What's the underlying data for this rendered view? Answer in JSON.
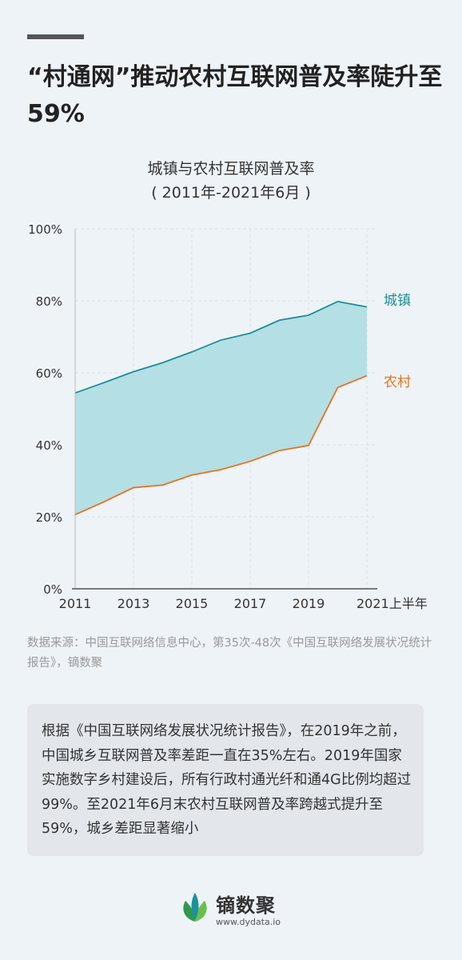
{
  "headline": "“村通网”推动农村互联网普及率陡升至59%",
  "chart_title_line1": "城镇与农村互联网普及率",
  "chart_title_line2": "( 2011年-2021年6月 )",
  "source": "数据来源：中国互联网络信息中心，第35次-48次《中国互联网络发展状况统计报告》，镝数聚",
  "note": "根据《中国互联网络发展状况统计报告》，在2019年之前，中国城乡互联网普及率差距一直在35%左右。2019年国家实施数字乡村建设后，所有行政村通光纤和通4G比例均超过99%。至2021年6月末农村互联网普及率跨越式提升至59%，城乡差距显著缩小",
  "brand": {
    "name": "镝数聚",
    "url": "www.dydata.io"
  },
  "colors": {
    "urban": "#1a8f98",
    "rural": "#e8731f",
    "fill": "#b0dde4",
    "axis": "#333333",
    "grid": "#dde3e8"
  },
  "chart_data": {
    "type": "area",
    "x": [
      "2011",
      "2012",
      "2013",
      "2014",
      "2015",
      "2016",
      "2017",
      "2018",
      "2019",
      "2020",
      "2021上半年"
    ],
    "x_tick_labels": [
      "2011",
      "2013",
      "2015",
      "2017",
      "2019",
      "2021上半年"
    ],
    "y_tick_labels": [
      "0%",
      "20%",
      "40%",
      "60%",
      "80%",
      "100%"
    ],
    "ylim": [
      0,
      100
    ],
    "grid": true,
    "series": [
      {
        "name": "城镇",
        "values": [
          54.4,
          57.3,
          60.3,
          62.8,
          65.8,
          69.1,
          71.0,
          74.6,
          76.0,
          79.8,
          78.3
        ]
      },
      {
        "name": "农村",
        "values": [
          20.6,
          24.2,
          28.1,
          28.8,
          31.6,
          33.1,
          35.4,
          38.4,
          39.8,
          55.9,
          59.2
        ]
      }
    ],
    "fill_between": true
  }
}
